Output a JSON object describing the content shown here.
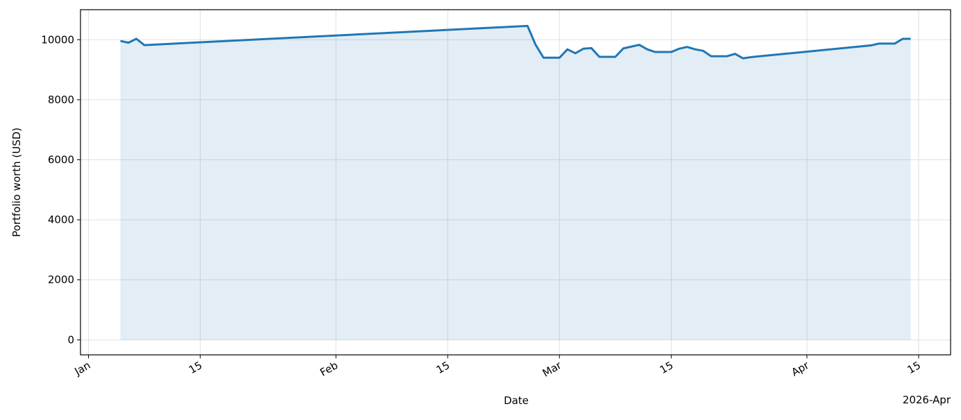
{
  "chart_data": {
    "type": "area-line",
    "xlabel": "Date",
    "ylabel": "Portfolio worth (USD)",
    "x_offset_label": "2026-Apr",
    "x": [
      "2026-01-05",
      "2026-01-06",
      "2026-01-07",
      "2026-01-08",
      "2026-02-25",
      "2026-02-26",
      "2026-02-27",
      "2026-02-28",
      "2026-03-01",
      "2026-03-02",
      "2026-03-03",
      "2026-03-04",
      "2026-03-05",
      "2026-03-06",
      "2026-03-07",
      "2026-03-08",
      "2026-03-09",
      "2026-03-10",
      "2026-03-11",
      "2026-03-12",
      "2026-03-13",
      "2026-03-14",
      "2026-03-15",
      "2026-03-16",
      "2026-03-17",
      "2026-03-18",
      "2026-03-19",
      "2026-03-20",
      "2026-03-21",
      "2026-03-22",
      "2026-03-23",
      "2026-03-24",
      "2026-03-25",
      "2026-04-09",
      "2026-04-10",
      "2026-04-11",
      "2026-04-12",
      "2026-04-13",
      "2026-04-14"
    ],
    "series": [
      {
        "name": "Portfolio worth",
        "color": "#1f77b4",
        "values": [
          9960,
          9900,
          10030,
          9820,
          10460,
          9840,
          9400,
          9400,
          9400,
          9680,
          9550,
          9700,
          9720,
          9430,
          9430,
          9430,
          9710,
          9770,
          9830,
          9680,
          9590,
          9590,
          9590,
          9700,
          9760,
          9680,
          9630,
          9450,
          9450,
          9450,
          9530,
          9380,
          9420,
          9810,
          9870,
          9870,
          9870,
          10030,
          10030
        ]
      }
    ],
    "xlim": [
      "2025-12-31",
      "2026-04-19"
    ],
    "xticks": [
      {
        "value": "2026-01-01",
        "label": "Jan"
      },
      {
        "value": "2026-01-15",
        "label": "15"
      },
      {
        "value": "2026-02-01",
        "label": "Feb"
      },
      {
        "value": "2026-02-15",
        "label": "15"
      },
      {
        "value": "2026-03-01",
        "label": "Mar"
      },
      {
        "value": "2026-03-15",
        "label": "15"
      },
      {
        "value": "2026-04-01",
        "label": "Apr"
      },
      {
        "value": "2026-04-15",
        "label": "15"
      }
    ],
    "ylim": [
      -500,
      11000
    ],
    "yticks": [
      0,
      2000,
      4000,
      6000,
      8000,
      10000
    ],
    "grid": true
  }
}
